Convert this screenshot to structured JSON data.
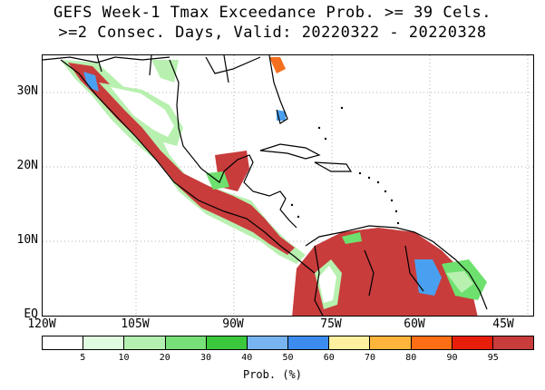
{
  "title": {
    "line1": "GEFS Week-1 Tmax Exceedance Prob. >= 39 Cels.",
    "line2": ">=2 Consec. Days, Valid: 20220322 - 20220328"
  },
  "map": {
    "lat_labels": [
      "30N",
      "20N",
      "10N",
      "EQ"
    ],
    "lon_labels": [
      "120W",
      "105W",
      "90W",
      "75W",
      "60W",
      "45W"
    ],
    "colors": {
      "high_prob": "#c83c3c",
      "very_high": "#e8231a",
      "orange": "#f5701e",
      "light_green": "#b8f0b0",
      "mid_green": "#6ee06e",
      "blue": "#4aa0f0",
      "light_blue": "#80c0f8",
      "land_outline": "#000000",
      "grid": "#999999"
    }
  },
  "colorbar": {
    "title": "Prob. (%)",
    "labels": [
      "5",
      "10",
      "20",
      "30",
      "40",
      "50",
      "60",
      "70",
      "80",
      "90",
      "95"
    ],
    "colors": [
      "#ffffff",
      "#e0fce0",
      "#b4f0b0",
      "#78e078",
      "#3cc83c",
      "#78b4f0",
      "#3c8cf0",
      "#fff0a0",
      "#ffb43c",
      "#ff6e14",
      "#e61e0a",
      "#c83c3c"
    ]
  }
}
